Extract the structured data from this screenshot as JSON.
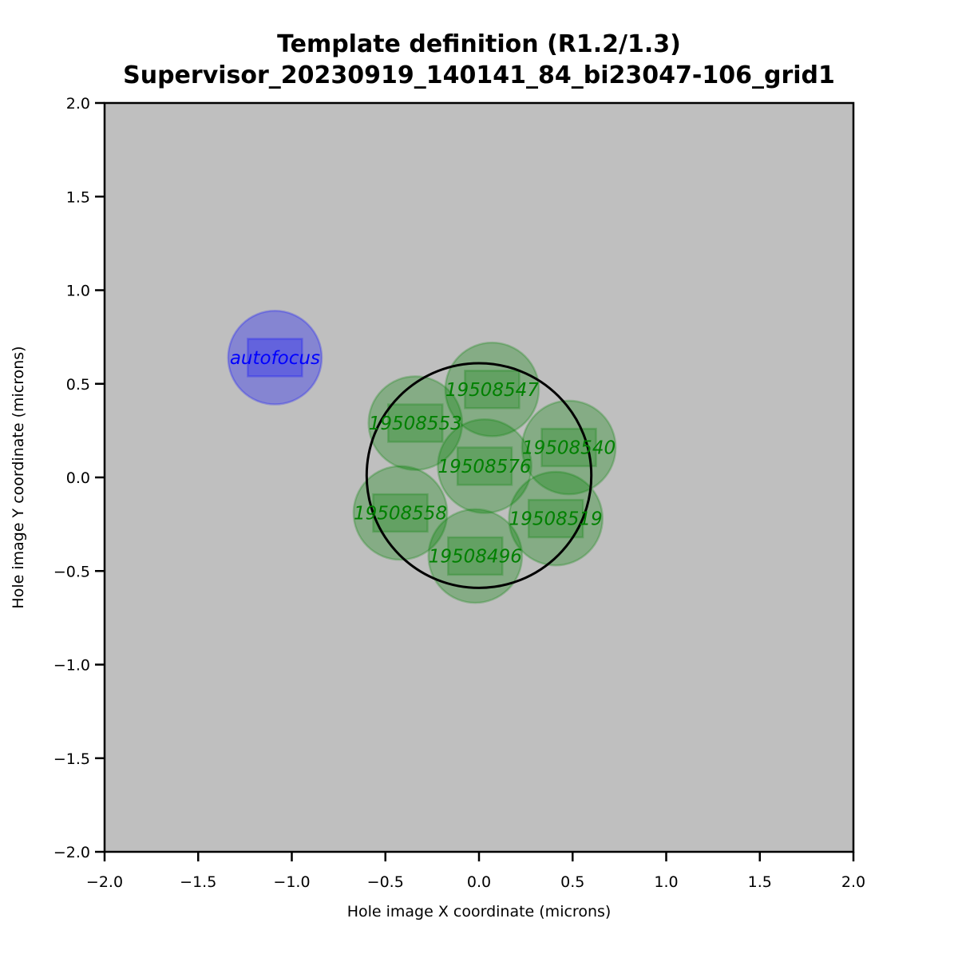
{
  "chart_data": {
    "type": "scatter",
    "title_line1": "Template definition (R1.2/1.3)",
    "title_line2": "Supervisor_20230919_140141_84_bi23047-106_grid1",
    "xlabel": "Hole image X coordinate (microns)",
    "ylabel": "Hole image Y coordinate (microns)",
    "xlim": [
      -2.0,
      2.0
    ],
    "ylim": [
      -2.0,
      2.0
    ],
    "xticks": [
      "−2.0",
      "−1.5",
      "−1.0",
      "−0.5",
      "0.0",
      "0.5",
      "1.0",
      "1.5",
      "2.0"
    ],
    "yticks": [
      "−2.0",
      "−1.5",
      "−1.0",
      "−0.5",
      "0.0",
      "0.5",
      "1.0",
      "1.5",
      "2.0"
    ],
    "background_color": "#bfbfbf",
    "grid": false,
    "hole": {
      "x": 0.0,
      "y": 0.01,
      "radius": 0.6,
      "color": "#000000"
    },
    "beam_radius": 0.25,
    "detector_half_width": 0.145,
    "detector_half_height": 0.1,
    "autofocus": {
      "label": "autofocus",
      "x": -1.09,
      "y": 0.64,
      "color": "#0000ff"
    },
    "exposures": [
      {
        "label": "19508547",
        "x": 0.07,
        "y": 0.47
      },
      {
        "label": "19508553",
        "x": -0.34,
        "y": 0.29
      },
      {
        "label": "19508540",
        "x": 0.48,
        "y": 0.16
      },
      {
        "label": "19508576",
        "x": 0.03,
        "y": 0.06
      },
      {
        "label": "19508558",
        "x": -0.42,
        "y": -0.19
      },
      {
        "label": "19508519",
        "x": 0.41,
        "y": -0.22
      },
      {
        "label": "19508496",
        "x": -0.02,
        "y": -0.42
      }
    ],
    "exposure_color": "#008000"
  }
}
